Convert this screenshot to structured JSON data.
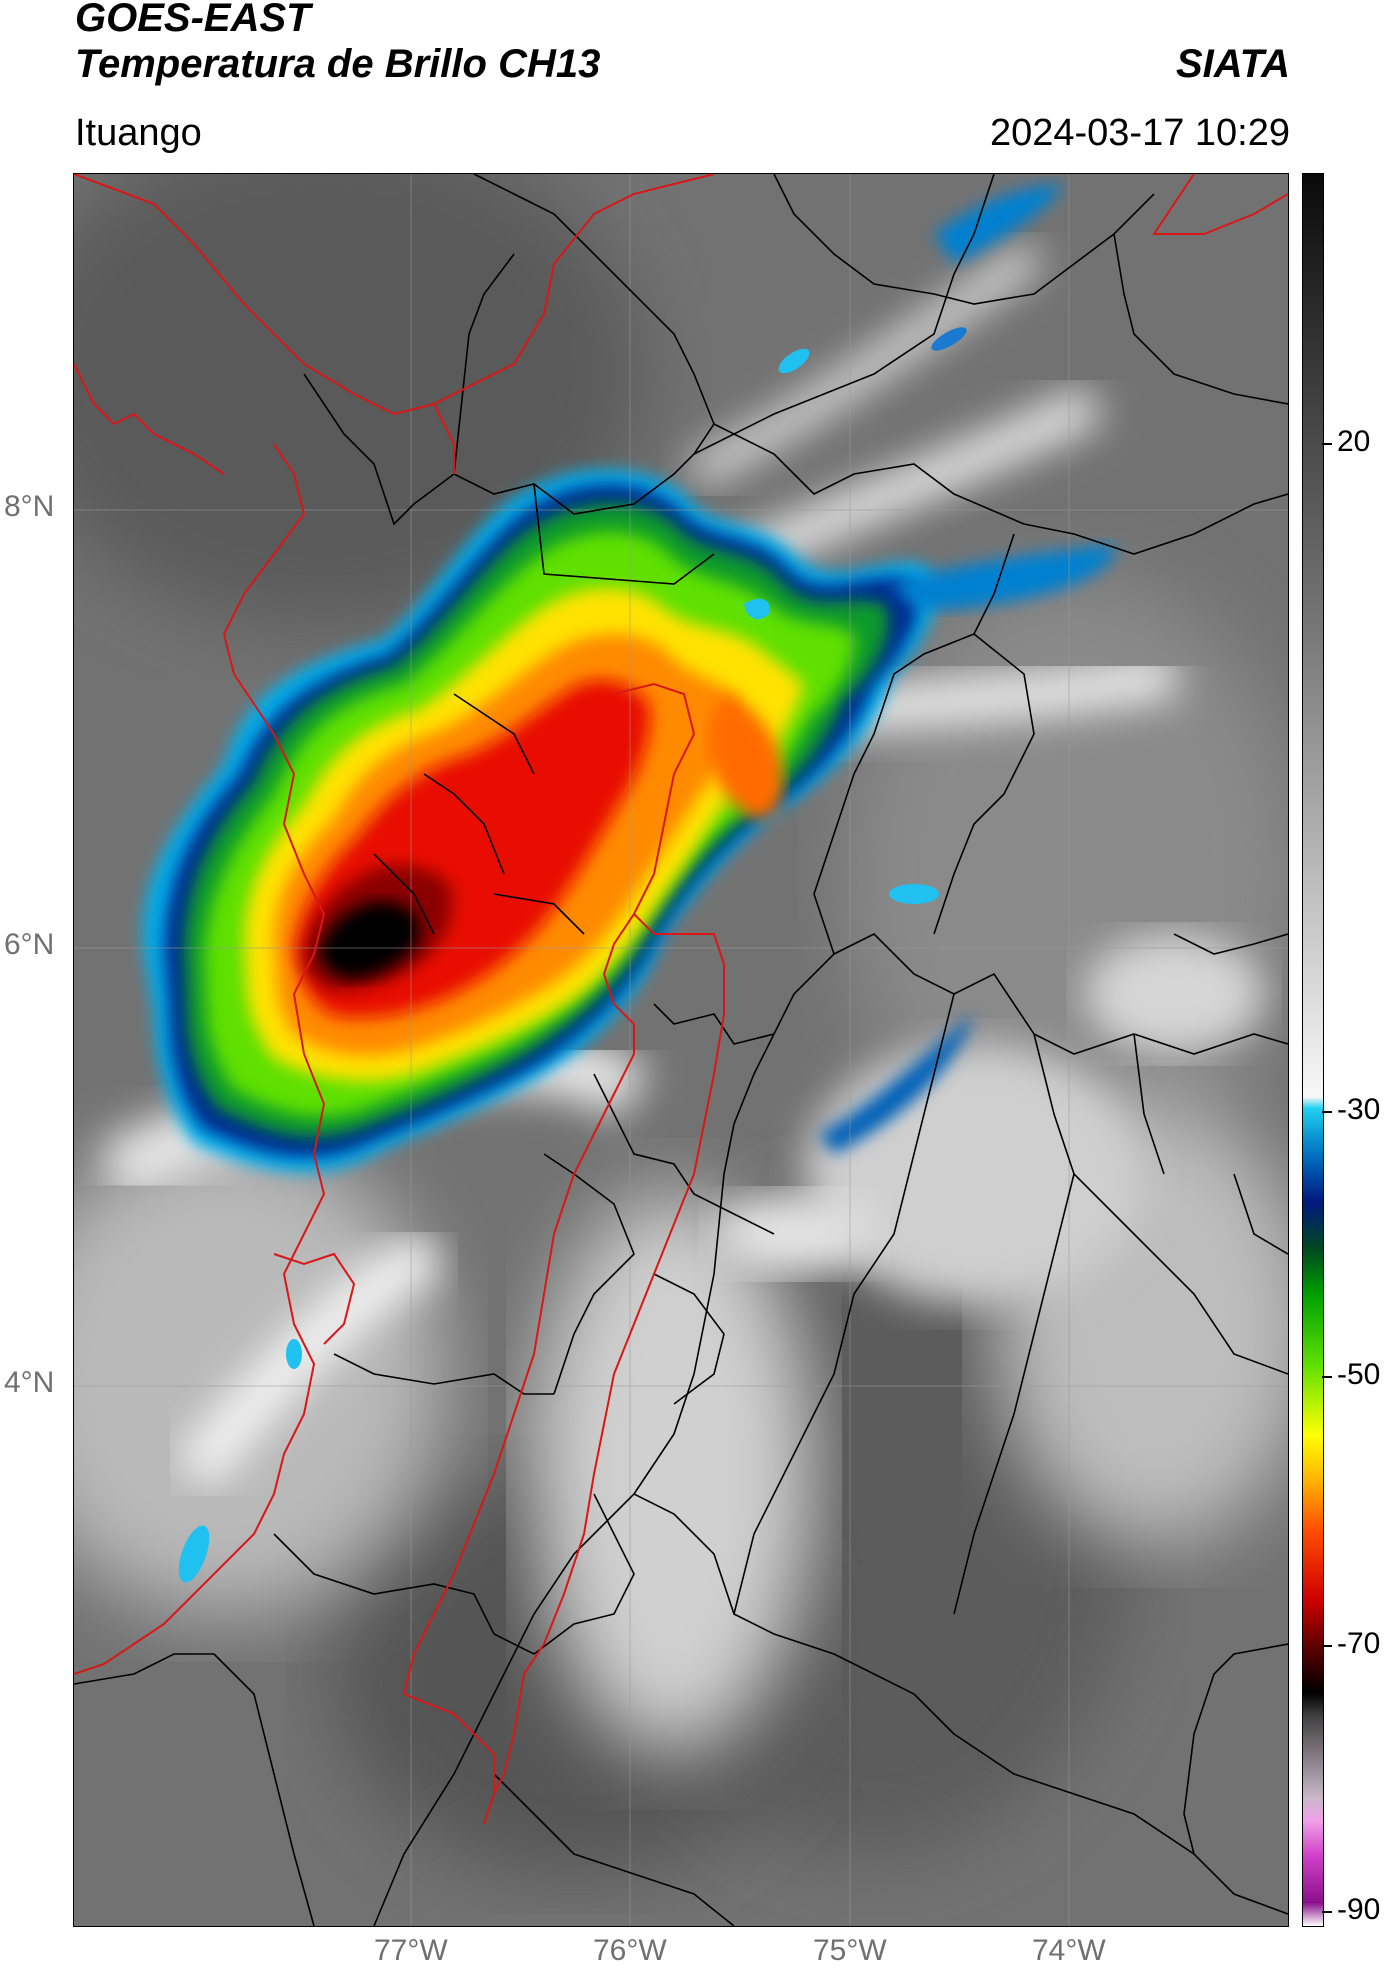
{
  "header": {
    "satellite": "GOES-EAST",
    "product": "Temperatura de Brillo CH13",
    "organization": "SIATA",
    "location": "Ituango",
    "timestamp": "2024-03-17 10:29"
  },
  "map": {
    "lon_labels": [
      "77°W",
      "76°W",
      "75°W",
      "74°W"
    ],
    "lat_labels": [
      "8°N",
      "6°N",
      "4°N"
    ],
    "border_colors": {
      "department": "#d81818",
      "municipal": "#000000"
    }
  },
  "colorbar": {
    "tick_labels": [
      "20",
      "-30",
      "-50",
      "-70",
      "-90"
    ],
    "range": [
      -90,
      60
    ],
    "stops": [
      {
        "value": -90,
        "color": "#ffffff"
      },
      {
        "value": -88,
        "color": "#8a108a"
      },
      {
        "value": -84,
        "color": "#d040c8"
      },
      {
        "value": -81,
        "color": "#f0a0e8"
      },
      {
        "value": -79,
        "color": "#c8b8c8"
      },
      {
        "value": -72,
        "color": "#404040"
      },
      {
        "value": -70,
        "color": "#000000"
      },
      {
        "value": -66,
        "color": "#600000"
      },
      {
        "value": -62,
        "color": "#d00000"
      },
      {
        "value": -56,
        "color": "#ff5000"
      },
      {
        "value": -52,
        "color": "#ffb000"
      },
      {
        "value": -48,
        "color": "#ffff00"
      },
      {
        "value": -42,
        "color": "#60e000"
      },
      {
        "value": -36,
        "color": "#00a000"
      },
      {
        "value": -32,
        "color": "#004820"
      },
      {
        "value": -28,
        "color": "#001880"
      },
      {
        "value": -24,
        "color": "#0070c0"
      },
      {
        "value": -20,
        "color": "#20d0f0"
      },
      {
        "value": -19,
        "color": "#f8f8f8"
      },
      {
        "value": 20,
        "color": "#7a7a7a"
      },
      {
        "value": 60,
        "color": "#0a0a0a"
      }
    ]
  }
}
